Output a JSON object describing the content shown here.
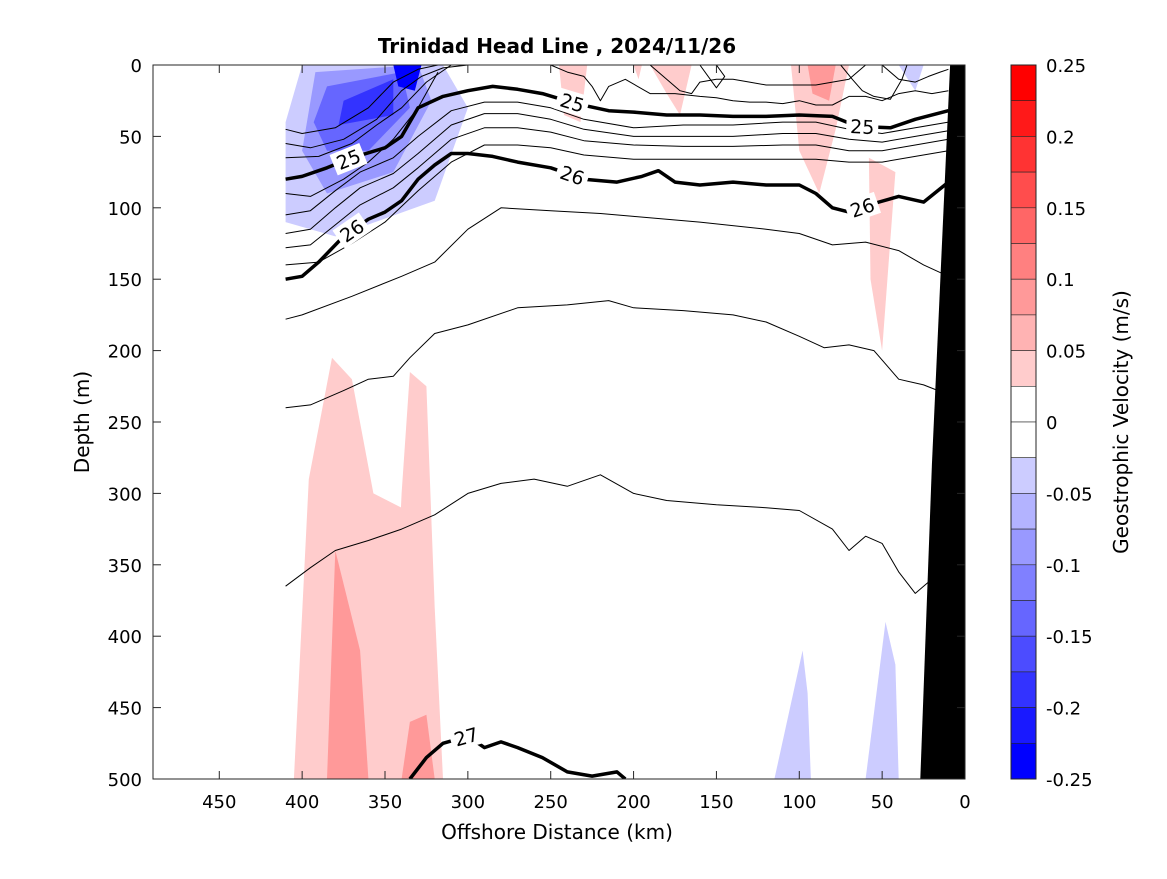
{
  "chart_data": {
    "type": "contour",
    "title": "Trinidad Head Line , 2024/11/26",
    "xlabel": "Offshore Distance (km)",
    "ylabel": "Depth (m)",
    "colorbar_label": "Geostrophic Velocity (m/s)",
    "xlim": [
      490,
      0
    ],
    "ylim": [
      0,
      500
    ],
    "x_reversed": true,
    "y_reversed": true,
    "xticks": [
      450,
      400,
      350,
      300,
      250,
      200,
      150,
      100,
      50,
      0
    ],
    "yticks": [
      0,
      50,
      100,
      150,
      200,
      250,
      300,
      350,
      400,
      450,
      500
    ],
    "colorbar": {
      "range": [
        -0.25,
        0.25
      ],
      "ticks": [
        0.25,
        0.2,
        0.15,
        0.1,
        0.05,
        0,
        -0.05,
        -0.1,
        -0.15,
        -0.2,
        -0.25
      ],
      "tick_labels": [
        "0.25",
        "0.2",
        "0.15",
        "0.1",
        "0.05",
        "0",
        "-0.05",
        "-0.1",
        "-0.15",
        "-0.2",
        "-0.25"
      ],
      "colormap": "blue-white-red",
      "levels": 20
    },
    "velocity_patches": [
      {
        "v": -0.05,
        "points": [
          [
            400,
            0
          ],
          [
            315,
            0
          ],
          [
            300,
            30
          ],
          [
            320,
            95
          ],
          [
            380,
            120
          ],
          [
            410,
            110
          ],
          [
            410,
            40
          ]
        ]
      },
      {
        "v": -0.1,
        "points": [
          [
            392,
            5
          ],
          [
            330,
            0
          ],
          [
            322,
            25
          ],
          [
            345,
            75
          ],
          [
            385,
            90
          ],
          [
            400,
            60
          ]
        ]
      },
      {
        "v": -0.15,
        "points": [
          [
            385,
            15
          ],
          [
            340,
            5
          ],
          [
            335,
            30
          ],
          [
            360,
            60
          ],
          [
            385,
            60
          ],
          [
            393,
            40
          ]
        ]
      },
      {
        "v": -0.2,
        "points": [
          [
            375,
            25
          ],
          [
            345,
            10
          ],
          [
            345,
            35
          ],
          [
            378,
            42
          ]
        ]
      },
      {
        "v": -0.25,
        "points": [
          [
            345,
            0
          ],
          [
            328,
            0
          ],
          [
            332,
            18
          ],
          [
            342,
            15
          ]
        ]
      },
      {
        "v": 0.05,
        "points": [
          [
            245,
            0
          ],
          [
            228,
            0
          ],
          [
            232,
            40
          ],
          [
            242,
            35
          ]
        ]
      },
      {
        "v": 0.05,
        "points": [
          [
            200,
            0
          ],
          [
            195,
            0
          ],
          [
            197,
            10
          ]
        ]
      },
      {
        "v": 0.05,
        "points": [
          [
            190,
            0
          ],
          [
            165,
            0
          ],
          [
            172,
            35
          ],
          [
            180,
            20
          ]
        ]
      },
      {
        "v": 0.05,
        "points": [
          [
            105,
            0
          ],
          [
            70,
            0
          ],
          [
            78,
            45
          ],
          [
            88,
            90
          ],
          [
            100,
            60
          ]
        ]
      },
      {
        "v": 0.1,
        "points": [
          [
            95,
            0
          ],
          [
            78,
            0
          ],
          [
            82,
            25
          ],
          [
            92,
            20
          ]
        ]
      },
      {
        "v": 0.05,
        "points": [
          [
            58,
            65
          ],
          [
            42,
            75
          ],
          [
            50,
            200
          ],
          [
            57,
            150
          ]
        ]
      },
      {
        "v": 0.05,
        "points": [
          [
            405,
            500
          ],
          [
            396,
            290
          ],
          [
            382,
            205
          ],
          [
            370,
            220
          ],
          [
            357,
            300
          ],
          [
            340,
            310
          ],
          [
            330,
            380
          ],
          [
            330,
            500
          ]
        ]
      },
      {
        "v": 0.05,
        "points": [
          [
            348,
            500
          ],
          [
            340,
            300
          ],
          [
            335,
            215
          ],
          [
            325,
            225
          ],
          [
            320,
            380
          ],
          [
            315,
            500
          ]
        ]
      },
      {
        "v": 0.1,
        "points": [
          [
            385,
            500
          ],
          [
            380,
            340
          ],
          [
            365,
            410
          ],
          [
            360,
            500
          ]
        ]
      },
      {
        "v": 0.1,
        "points": [
          [
            340,
            500
          ],
          [
            335,
            460
          ],
          [
            325,
            455
          ],
          [
            320,
            500
          ]
        ]
      },
      {
        "v": -0.05,
        "points": [
          [
            115,
            500
          ],
          [
            98,
            410
          ],
          [
            95,
            440
          ],
          [
            93,
            500
          ]
        ]
      },
      {
        "v": -0.05,
        "points": [
          [
            60,
            500
          ],
          [
            48,
            390
          ],
          [
            42,
            420
          ],
          [
            40,
            500
          ]
        ]
      },
      {
        "v": -0.05,
        "points": [
          [
            40,
            0
          ],
          [
            25,
            0
          ],
          [
            30,
            18
          ]
        ]
      }
    ],
    "density_contours": [
      {
        "level": 25,
        "bold": true,
        "label": "25",
        "x": [
          410,
          400,
          385,
          370,
          350,
          340,
          330,
          315,
          300,
          285,
          270,
          255,
          235,
          215,
          200,
          180,
          160,
          140,
          120,
          100,
          80,
          65,
          45,
          30,
          10
        ],
        "y": [
          80,
          78,
          72,
          65,
          58,
          50,
          30,
          22,
          18,
          15,
          17,
          20,
          27,
          32,
          33,
          35,
          35,
          36,
          36,
          35,
          36,
          43,
          44,
          38,
          32
        ]
      },
      {
        "level": 26,
        "bold": true,
        "label": "26",
        "x": [
          410,
          400,
          390,
          375,
          360,
          350,
          340,
          330,
          320,
          310,
          300,
          285,
          270,
          250,
          230,
          210,
          195,
          185,
          175,
          160,
          140,
          120,
          100,
          90,
          80,
          70,
          55,
          40,
          25,
          10
        ],
        "y": [
          150,
          148,
          138,
          120,
          108,
          103,
          95,
          80,
          70,
          62,
          62,
          64,
          68,
          72,
          80,
          82,
          78,
          74,
          82,
          84,
          82,
          84,
          84,
          90,
          100,
          103,
          97,
          92,
          96,
          82
        ]
      },
      {
        "level": 27,
        "bold": true,
        "label": "27",
        "x": [
          335,
          325,
          315,
          300,
          290,
          280,
          270,
          255,
          240,
          225,
          210,
          205
        ],
        "y": [
          500,
          485,
          475,
          470,
          478,
          474,
          478,
          485,
          495,
          498,
          495,
          500
        ]
      },
      {
        "level": 26.6,
        "bold": false,
        "label": "",
        "x": [
          410,
          400,
          370,
          340,
          320,
          300,
          280,
          250,
          220,
          200,
          160,
          120,
          100,
          80,
          60,
          40,
          25,
          10
        ],
        "y": [
          178,
          175,
          162,
          148,
          138,
          115,
          100,
          102,
          104,
          106,
          110,
          115,
          118,
          126,
          124,
          130,
          140,
          148
        ]
      },
      {
        "level": 26.75,
        "bold": false,
        "label": "",
        "x": [
          410,
          395,
          375,
          360,
          345,
          335,
          320,
          300,
          270,
          240,
          215,
          200,
          170,
          140,
          120,
          100,
          85,
          70,
          55,
          40,
          25,
          12
        ],
        "y": [
          240,
          238,
          228,
          220,
          218,
          205,
          188,
          182,
          170,
          168,
          165,
          170,
          172,
          175,
          180,
          190,
          198,
          196,
          200,
          220,
          224,
          230
        ]
      },
      {
        "level": 26.9,
        "bold": false,
        "label": "",
        "x": [
          410,
          395,
          380,
          360,
          340,
          320,
          300,
          280,
          260,
          240,
          220,
          200,
          180,
          150,
          120,
          100,
          80,
          70,
          60,
          50,
          40,
          30,
          20
        ],
        "y": [
          365,
          352,
          340,
          333,
          325,
          315,
          300,
          293,
          290,
          295,
          287,
          300,
          305,
          308,
          310,
          312,
          325,
          340,
          330,
          335,
          355,
          370,
          360
        ]
      }
    ],
    "thin_contours": [
      {
        "x": [
          410,
          400,
          380,
          360,
          345,
          330,
          318,
          305
        ],
        "y": [
          45,
          48,
          44,
          30,
          12,
          3,
          0,
          0
        ]
      },
      {
        "x": [
          410,
          395,
          375,
          355,
          340,
          328,
          315,
          300
        ],
        "y": [
          55,
          58,
          52,
          38,
          18,
          8,
          2,
          0
        ]
      },
      {
        "x": [
          410,
          390,
          370,
          355,
          340,
          325,
          310
        ],
        "y": [
          65,
          64,
          55,
          42,
          30,
          12,
          0
        ]
      },
      {
        "x": [
          410,
          395,
          375,
          360,
          345,
          330,
          318
        ],
        "y": [
          90,
          92,
          80,
          68,
          52,
          30,
          5
        ]
      },
      {
        "x": [
          410,
          395,
          380,
          365,
          345,
          330,
          310,
          290,
          270,
          250,
          230,
          200,
          170,
          140,
          110,
          90,
          70,
          50,
          30,
          10
        ],
        "y": [
          105,
          102,
          88,
          75,
          65,
          50,
          32,
          26,
          26,
          30,
          38,
          44,
          42,
          42,
          40,
          40,
          45,
          48,
          44,
          40
        ]
      },
      {
        "x": [
          410,
          395,
          380,
          365,
          345,
          330,
          310,
          290,
          270,
          250,
          230,
          200,
          170,
          140,
          110,
          90,
          70,
          50,
          30,
          10
        ],
        "y": [
          118,
          115,
          100,
          86,
          76,
          62,
          42,
          34,
          34,
          38,
          45,
          50,
          50,
          50,
          48,
          48,
          52,
          54,
          50,
          46
        ]
      },
      {
        "x": [
          410,
          395,
          380,
          365,
          345,
          330,
          310,
          290,
          270,
          250,
          230,
          200,
          170,
          140,
          110,
          90,
          70,
          50,
          30,
          10
        ],
        "y": [
          128,
          126,
          112,
          98,
          86,
          72,
          52,
          44,
          44,
          47,
          53,
          56,
          57,
          57,
          56,
          56,
          60,
          60,
          56,
          52
        ]
      },
      {
        "x": [
          410,
          390,
          370,
          350,
          330,
          310,
          290,
          270,
          250,
          230,
          200,
          170,
          140,
          110,
          90,
          70,
          50,
          30,
          10
        ],
        "y": [
          140,
          138,
          125,
          110,
          88,
          68,
          56,
          56,
          58,
          63,
          66,
          66,
          66,
          66,
          66,
          68,
          68,
          64,
          60
        ]
      },
      {
        "x": [
          250,
          240,
          230,
          225,
          220,
          215,
          205,
          190,
          175,
          160,
          150,
          140,
          130,
          120,
          110,
          100,
          90,
          80,
          70,
          60,
          50,
          40,
          30,
          20,
          10
        ],
        "y": [
          0,
          5,
          8,
          15,
          25,
          15,
          10,
          20,
          20,
          22,
          23,
          25,
          26,
          26,
          27,
          25,
          28,
          28,
          22,
          22,
          25,
          20,
          18,
          20,
          18
        ]
      },
      {
        "x": [
          160,
          150,
          145,
          150,
          160
        ],
        "y": [
          0,
          0,
          8,
          16,
          0
        ]
      },
      {
        "x": [
          190,
          178,
          172,
          165,
          160,
          150,
          140,
          130,
          120,
          110,
          100,
          90,
          80,
          70,
          60
        ],
        "y": [
          0,
          12,
          18,
          20,
          12,
          10,
          10,
          12,
          14,
          14,
          14,
          14,
          12,
          10,
          0
        ]
      },
      {
        "x": [
          75,
          68,
          62,
          55,
          45,
          38,
          35
        ],
        "y": [
          0,
          10,
          18,
          22,
          24,
          10,
          0
        ]
      },
      {
        "x": [
          50,
          40,
          30,
          22,
          15,
          10
        ],
        "y": [
          0,
          10,
          12,
          8,
          5,
          3
        ]
      }
    ],
    "bathymetry": {
      "color": "#000000",
      "points": [
        [
          27,
          500
        ],
        [
          20,
          280
        ],
        [
          9,
          0
        ],
        [
          0,
          0
        ],
        [
          0,
          500
        ]
      ]
    }
  }
}
